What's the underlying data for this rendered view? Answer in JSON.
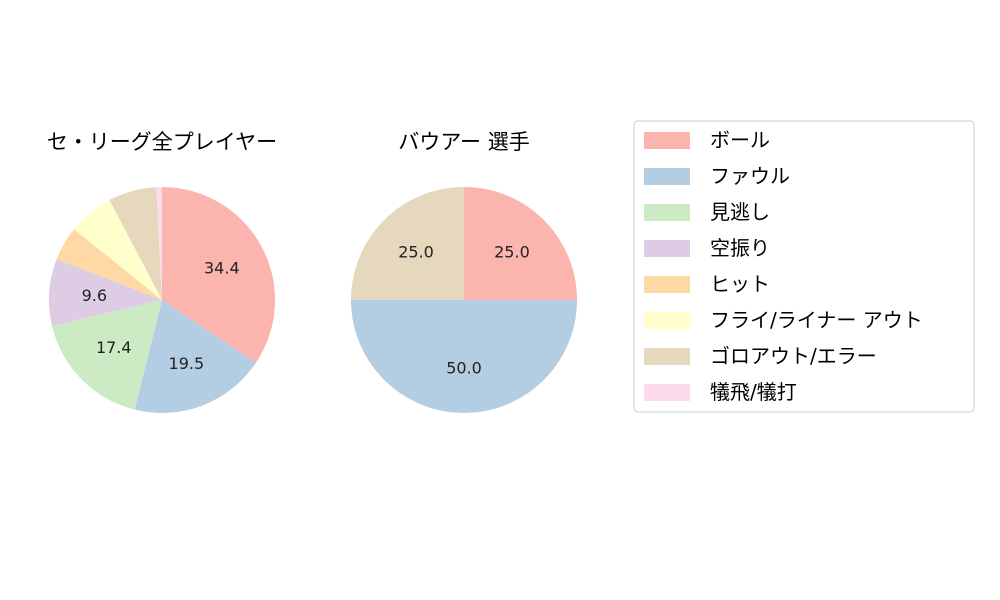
{
  "colors": {
    "ball": "#fbb4ae",
    "foul": "#b3cde3",
    "called_strike": "#ccebc5",
    "swinging_strike": "#decbe4",
    "hit": "#fed9a6",
    "fly_liner_out": "#ffffcc",
    "grounder_out_error": "#e5d8bd",
    "sacrifice": "#fddaec"
  },
  "legend": {
    "items": [
      {
        "label": "ボール",
        "color": "#fbb4ae"
      },
      {
        "label": "ファウル",
        "color": "#b3cde3"
      },
      {
        "label": "見逃し",
        "color": "#ccebc5"
      },
      {
        "label": "空振り",
        "color": "#decbe4"
      },
      {
        "label": "ヒット",
        "color": "#fed9a6"
      },
      {
        "label": "フライ/ライナー アウト",
        "color": "#ffffcc"
      },
      {
        "label": "ゴロアウト/エラー",
        "color": "#e5d8bd"
      },
      {
        "label": "犠飛/犠打",
        "color": "#fddaec"
      }
    ]
  },
  "chart_data": [
    {
      "type": "pie",
      "title": "セ・リーグ全プレイヤー",
      "start_angle": "90 (top), clockwise",
      "categories": [
        "ボール",
        "ファウル",
        "見逃し",
        "空振り",
        "ヒット",
        "フライ/ライナー アウト",
        "ゴロアウト/エラー",
        "犠飛/犠打"
      ],
      "values": [
        34.4,
        19.5,
        17.4,
        9.6,
        4.9,
        6.5,
        6.9,
        0.8
      ],
      "labels": [
        "34.4",
        "19.5",
        "17.4",
        "9.6",
        "",
        "",
        "",
        ""
      ]
    },
    {
      "type": "pie",
      "title": "バウアー  選手",
      "start_angle": "90 (top), clockwise",
      "categories": [
        "ボール",
        "ファウル",
        "見逃し",
        "空振り",
        "ヒット",
        "フライ/ライナー アウト",
        "ゴロアウト/エラー",
        "犠飛/犠打"
      ],
      "values": [
        25.0,
        50.0,
        0,
        0,
        0,
        0,
        25.0,
        0
      ],
      "labels": [
        "25.0",
        "50.0",
        "",
        "",
        "",
        "",
        "25.0",
        ""
      ]
    }
  ]
}
